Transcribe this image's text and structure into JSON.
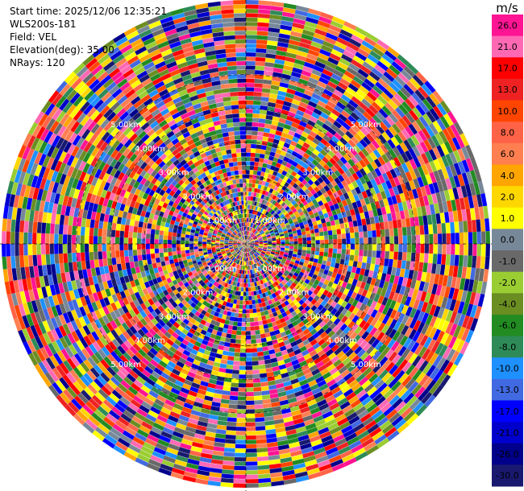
{
  "info": {
    "start_time": "Start time: 2025/12/06 12:35:21",
    "instrument": "WLS200s-181",
    "field": "Field: VEL",
    "elevation": "Elevation(deg): 35.00",
    "nrays": "NRays: 120"
  },
  "chart_data": {
    "type": "heatmap",
    "projection": "polar PPI",
    "field": "VEL",
    "units": "m/s",
    "n_rays": 120,
    "elevation_deg": 35.0,
    "range_rings_km": [
      "1.00km",
      "2.00km",
      "3.00km",
      "4.00km",
      "5.00km"
    ],
    "ring_values": [
      1,
      2,
      3,
      4,
      5
    ],
    "max_range_km": 7.2,
    "colorbar": {
      "title": "m/s",
      "tick_labels": [
        "26.0",
        "21.0",
        "17.0",
        "13.0",
        "10.0",
        "8.0",
        "6.0",
        "4.0",
        "2.0",
        "1.0",
        "0.0",
        "-1.0",
        "-2.0",
        "-4.0",
        "-6.0",
        "-8.0",
        "-10.0",
        "-13.0",
        "-17.0",
        "-21.0",
        "-26.0",
        "-30.0"
      ],
      "colors": [
        "#ff1493",
        "#ff69b4",
        "#ff0000",
        "#ee2222",
        "#ff4500",
        "#ff6347",
        "#ff7f50",
        "#ffa500",
        "#ffd700",
        "#ffff00",
        "#778899",
        "#696969",
        "#9acd32",
        "#6b8e23",
        "#228b22",
        "#2e8b57",
        "#1e90ff",
        "#4169e1",
        "#0000ff",
        "#0000cd",
        "#00008b",
        "#191970"
      ]
    }
  }
}
